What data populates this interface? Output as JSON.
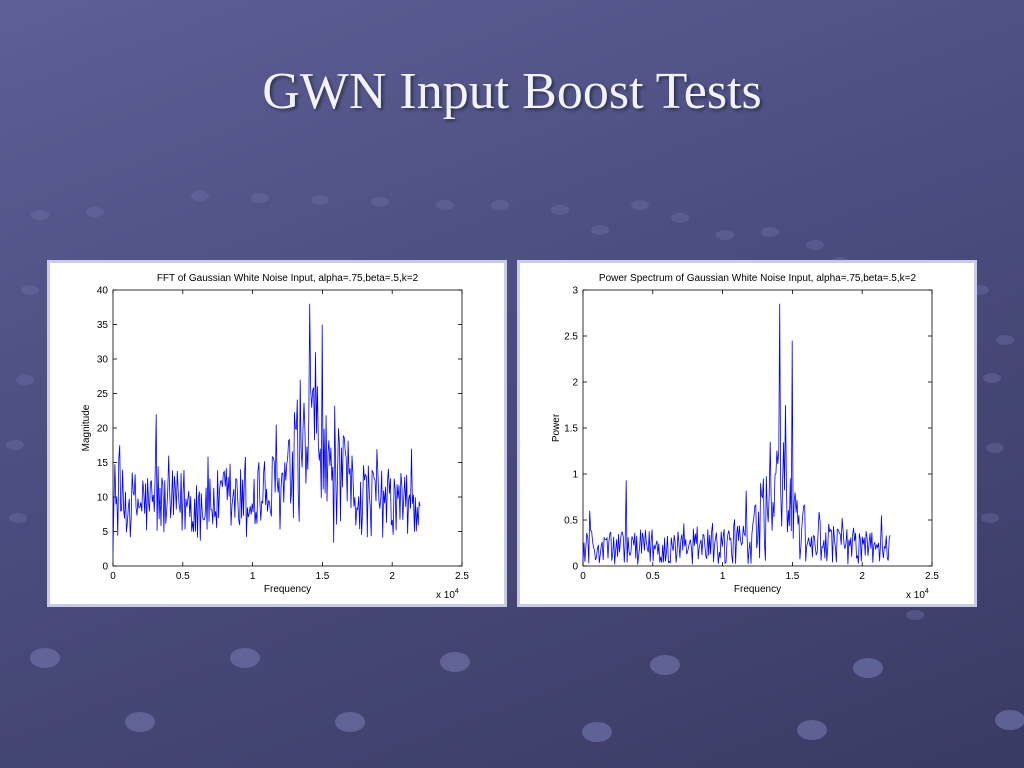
{
  "slide": {
    "title": "GWN Input Boost Tests"
  },
  "colors": {
    "line": "#0000ff",
    "background": "#4f5187",
    "title": "#f2f2fa"
  },
  "chart_data": [
    {
      "type": "line",
      "title": "FFT of Gaussian White Noise Input, alpha=.75,beta=.5,k=2",
      "xlabel": "Frequency",
      "ylabel": "Magnitude",
      "x_multiplier": "x 10^4",
      "xlim": [
        0,
        2.5
      ],
      "ylim": [
        0,
        40
      ],
      "xticks": [
        "0",
        "0.5",
        "1",
        "1.5",
        "2",
        "2.5"
      ],
      "yticks": [
        "0",
        "5",
        "10",
        "15",
        "20",
        "25",
        "30",
        "35",
        "40"
      ],
      "x_range_data": [
        0,
        2.2
      ],
      "envelope": {
        "x": [
          0,
          0.2,
          0.4,
          0.6,
          0.8,
          1.0,
          1.2,
          1.3,
          1.38,
          1.45,
          1.5,
          1.55,
          1.65,
          1.8,
          2.0,
          2.2
        ],
        "mean": [
          9,
          9,
          9,
          9,
          9,
          9.5,
          11,
          13,
          17,
          17,
          15,
          14,
          12,
          10,
          9,
          8.5
        ],
        "amp": [
          5,
          5,
          5,
          5,
          5,
          5.5,
          6,
          7,
          10,
          10,
          9,
          8,
          7,
          6,
          5,
          5
        ]
      },
      "peaks": [
        {
          "x": 1.41,
          "y": 38
        },
        {
          "x": 1.5,
          "y": 35
        },
        {
          "x": 1.45,
          "y": 31
        },
        {
          "x": 0.31,
          "y": 22
        },
        {
          "x": 1.17,
          "y": 20.5
        },
        {
          "x": 1.34,
          "y": 27
        },
        {
          "x": 2.14,
          "y": 17
        },
        {
          "x": 0.05,
          "y": 17.5
        }
      ],
      "grid": false
    },
    {
      "type": "line",
      "title": "Power Spectrum of Gaussian White Noise Input, alpha=.75,beta=.5,k=2",
      "xlabel": "Frequency",
      "ylabel": "Power",
      "x_multiplier": "x 10^4",
      "xlim": [
        0,
        2.5
      ],
      "ylim": [
        0,
        3
      ],
      "xticks": [
        "0",
        "0.5",
        "1",
        "1.5",
        "2",
        "2.5"
      ],
      "yticks": [
        "0",
        "0.5",
        "1",
        "1.5",
        "2",
        "2.5",
        "3"
      ],
      "x_range_data": [
        0,
        2.2
      ],
      "envelope": {
        "x": [
          0,
          0.2,
          0.4,
          0.6,
          0.8,
          1.0,
          1.2,
          1.3,
          1.38,
          1.45,
          1.5,
          1.55,
          1.65,
          1.8,
          2.0,
          2.2
        ],
        "mean": [
          0.2,
          0.2,
          0.2,
          0.2,
          0.2,
          0.22,
          0.3,
          0.45,
          0.75,
          0.75,
          0.6,
          0.5,
          0.35,
          0.25,
          0.2,
          0.18
        ],
        "amp": [
          0.2,
          0.2,
          0.2,
          0.2,
          0.2,
          0.22,
          0.3,
          0.4,
          0.6,
          0.6,
          0.5,
          0.4,
          0.3,
          0.22,
          0.2,
          0.18
        ]
      },
      "peaks": [
        {
          "x": 1.41,
          "y": 2.85
        },
        {
          "x": 1.5,
          "y": 2.45
        },
        {
          "x": 1.45,
          "y": 1.75
        },
        {
          "x": 0.31,
          "y": 0.93
        },
        {
          "x": 1.17,
          "y": 0.82
        },
        {
          "x": 1.34,
          "y": 1.35
        },
        {
          "x": 2.14,
          "y": 0.55
        },
        {
          "x": 0.05,
          "y": 0.6
        }
      ],
      "grid": false
    }
  ]
}
